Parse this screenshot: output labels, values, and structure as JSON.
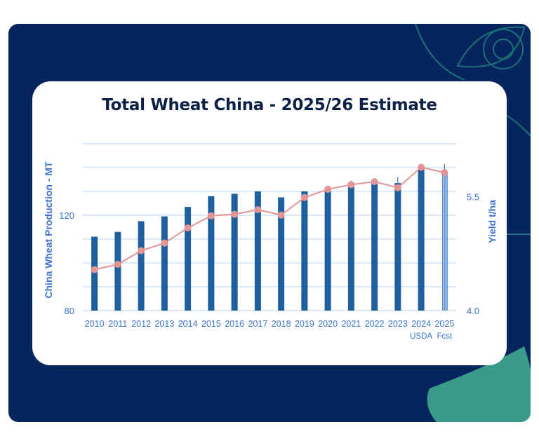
{
  "colors": {
    "panel": "#06255e",
    "bar": "#1e5fa0",
    "forecast_bar": "#5b8fd0",
    "yield_line": "#e39494",
    "axis_label": "#3d74d1",
    "grid": "#b9d3ef",
    "title": "#0c1f44",
    "leaf": "#3b9b8b"
  },
  "chart_data": {
    "type": "bar",
    "title": "Total Wheat China - 2025/26 Estimate",
    "ylabel": "China Wheat Production - MT",
    "y2label": "Yield t/ha",
    "categories": [
      "2010",
      "2011",
      "2012",
      "2013",
      "2014",
      "2015",
      "2016",
      "2017",
      "2018",
      "2019",
      "2020",
      "2021",
      "2022",
      "2023",
      "2024",
      "2025"
    ],
    "x_sublabels": [
      "",
      "",
      "",
      "",
      "",
      "",
      "",
      "",
      "",
      "",
      "",
      "",
      "",
      "",
      "USDA",
      "Fcst"
    ],
    "y_ticks": [
      "80",
      "120"
    ],
    "y2_ticks": [
      "4.0",
      "5.5"
    ],
    "ylim": [
      80,
      150
    ],
    "y2lim": [
      4.0,
      6.2
    ],
    "grid": true,
    "series": [
      {
        "type": "bar",
        "values": [
          111,
          113,
          117.5,
          119.5,
          123.5,
          128,
          129,
          130,
          127.5,
          130,
          130.5,
          133.5,
          134.5,
          133.5,
          140,
          138.5
        ],
        "error_high": [
          111,
          113,
          117.5,
          119.5,
          123.5,
          128,
          129,
          130,
          127.5,
          130,
          130.5,
          134.5,
          135,
          136,
          141,
          141.5
        ],
        "forecast_index": 15
      },
      {
        "type": "line",
        "axis": "right",
        "values": [
          4.54,
          4.61,
          4.79,
          4.89,
          5.09,
          5.25,
          5.27,
          5.33,
          5.26,
          5.49,
          5.6,
          5.66,
          5.7,
          5.62,
          5.89,
          5.82
        ]
      }
    ]
  }
}
